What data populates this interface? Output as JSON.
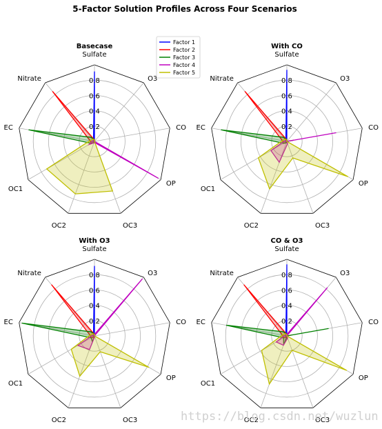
{
  "figure": {
    "title": "5-Factor Solution Profiles Across Four Scenarios",
    "watermark": "https://blog.csdn.net/wuzlun"
  },
  "legend": {
    "items": [
      {
        "label": "Factor 1",
        "color": "#0000ff"
      },
      {
        "label": "Factor 2",
        "color": "#ff0000"
      },
      {
        "label": "Factor 3",
        "color": "#008000"
      },
      {
        "label": "Factor 4",
        "color": "#bf00bf"
      },
      {
        "label": "Factor 5",
        "color": "#bfbf00"
      }
    ]
  },
  "chart_data": [
    {
      "type": "radar",
      "title": "Basecase",
      "axes": [
        "Sulfate",
        "O3",
        "CO",
        "OP",
        "OC3",
        "OC2",
        "OC1",
        "EC",
        "Nitrate"
      ],
      "rgrid": [
        0.2,
        0.4,
        0.6,
        0.8
      ],
      "rlim": [
        0,
        1.0
      ],
      "series": [
        {
          "name": "Factor 1",
          "values": [
            0.91,
            0.0,
            0.0,
            0.0,
            0.0,
            0.0,
            0.01,
            0.02,
            0.02
          ]
        },
        {
          "name": "Factor 2",
          "values": [
            0.02,
            0.0,
            0.0,
            0.0,
            0.01,
            0.02,
            0.05,
            0.06,
            0.85
          ]
        },
        {
          "name": "Factor 3",
          "values": [
            0.02,
            0.0,
            0.0,
            0.0,
            0.01,
            0.02,
            0.05,
            0.87,
            0.07
          ]
        },
        {
          "name": "Factor 4",
          "values": [
            0.02,
            0.0,
            0.0,
            0.96,
            0.02,
            0.02,
            0.08,
            0.03,
            0.01
          ]
        },
        {
          "name": "Factor 5",
          "values": [
            0.02,
            0.0,
            0.0,
            0.0,
            0.69,
            0.73,
            0.72,
            0.06,
            0.04
          ]
        }
      ]
    },
    {
      "type": "radar",
      "title": "With CO",
      "axes": [
        "Sulfate",
        "O3",
        "CO",
        "OP",
        "OC3",
        "OC2",
        "OC1",
        "EC",
        "Nitrate"
      ],
      "rgrid": [
        0.2,
        0.4,
        0.6,
        0.8
      ],
      "rlim": [
        0,
        1.0
      ],
      "series": [
        {
          "name": "Factor 1",
          "values": [
            0.93,
            0.0,
            0.0,
            0.0,
            0.0,
            0.0,
            0.01,
            0.02,
            0.02
          ]
        },
        {
          "name": "Factor 2",
          "values": [
            0.02,
            0.0,
            0.09,
            0.0,
            0.01,
            0.02,
            0.05,
            0.06,
            0.85
          ]
        },
        {
          "name": "Factor 3",
          "values": [
            0.02,
            0.0,
            0.08,
            0.0,
            0.01,
            0.02,
            0.05,
            0.87,
            0.07
          ]
        },
        {
          "name": "Factor 4",
          "values": [
            0.02,
            0.0,
            0.65,
            0.0,
            0.03,
            0.29,
            0.24,
            0.03,
            0.01
          ]
        },
        {
          "name": "Factor 5",
          "values": [
            0.02,
            0.0,
            0.0,
            0.92,
            0.23,
            0.66,
            0.43,
            0.06,
            0.04
          ]
        }
      ]
    },
    {
      "type": "radar",
      "title": "With O3",
      "axes": [
        "Sulfate",
        "O3",
        "CO",
        "OP",
        "OC3",
        "OC2",
        "OC1",
        "EC",
        "Nitrate"
      ],
      "rgrid": [
        0.2,
        0.4,
        0.6,
        0.8
      ],
      "rlim": [
        0,
        1.0
      ],
      "series": [
        {
          "name": "Factor 1",
          "values": [
            0.91,
            0.0,
            0.0,
            0.0,
            0.0,
            0.0,
            0.01,
            0.02,
            0.02
          ]
        },
        {
          "name": "Factor 2",
          "values": [
            0.02,
            0.0,
            0.0,
            0.0,
            0.01,
            0.02,
            0.05,
            0.06,
            0.87
          ]
        },
        {
          "name": "Factor 3",
          "values": [
            0.02,
            0.0,
            0.0,
            0.0,
            0.01,
            0.08,
            0.05,
            0.96,
            0.07
          ]
        },
        {
          "name": "Factor 4",
          "values": [
            0.02,
            0.97,
            0.0,
            0.0,
            0.01,
            0.19,
            0.25,
            0.03,
            0.01
          ]
        },
        {
          "name": "Factor 5",
          "values": [
            0.02,
            0.0,
            0.0,
            0.82,
            0.22,
            0.56,
            0.35,
            0.06,
            0.04
          ]
        }
      ]
    },
    {
      "type": "radar",
      "title": "CO & O3",
      "axes": [
        "Sulfate",
        "O3",
        "CO",
        "OP",
        "OC3",
        "OC2",
        "OC1",
        "EC",
        "Nitrate"
      ],
      "rgrid": [
        0.2,
        0.4,
        0.6,
        0.8
      ],
      "rlim": [
        0,
        1.0
      ],
      "series": [
        {
          "name": "Factor 1",
          "values": [
            0.93,
            0.0,
            0.0,
            0.0,
            0.0,
            0.0,
            0.01,
            0.02,
            0.02
          ]
        },
        {
          "name": "Factor 2",
          "values": [
            0.02,
            0.0,
            0.06,
            0.0,
            0.01,
            0.02,
            0.05,
            0.06,
            0.87
          ]
        },
        {
          "name": "Factor 3",
          "values": [
            0.02,
            0.0,
            0.55,
            0.0,
            0.01,
            0.12,
            0.05,
            0.8,
            0.07
          ]
        },
        {
          "name": "Factor 4",
          "values": [
            0.02,
            0.82,
            0.0,
            0.0,
            0.03,
            0.13,
            0.16,
            0.03,
            0.01
          ]
        },
        {
          "name": "Factor 5",
          "values": [
            0.02,
            0.0,
            0.0,
            0.9,
            0.2,
            0.67,
            0.38,
            0.06,
            0.04
          ]
        }
      ]
    }
  ]
}
